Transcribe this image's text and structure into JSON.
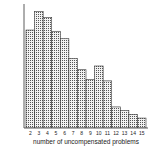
{
  "chart_data": {
    "type": "bar",
    "x_label": "number of uncompensated problems",
    "categories": [
      "2",
      "3",
      "4",
      "5",
      "6",
      "7",
      "8",
      "9",
      "10",
      "11",
      "12",
      "13",
      "14",
      "15"
    ],
    "values": [
      79,
      94,
      89,
      78,
      72,
      56,
      47,
      39,
      50,
      38,
      17,
      14,
      11,
      8
    ],
    "color": "#555555",
    "ylim": [
      0,
      100
    ],
    "grid": false,
    "tick_labels": "x"
  }
}
